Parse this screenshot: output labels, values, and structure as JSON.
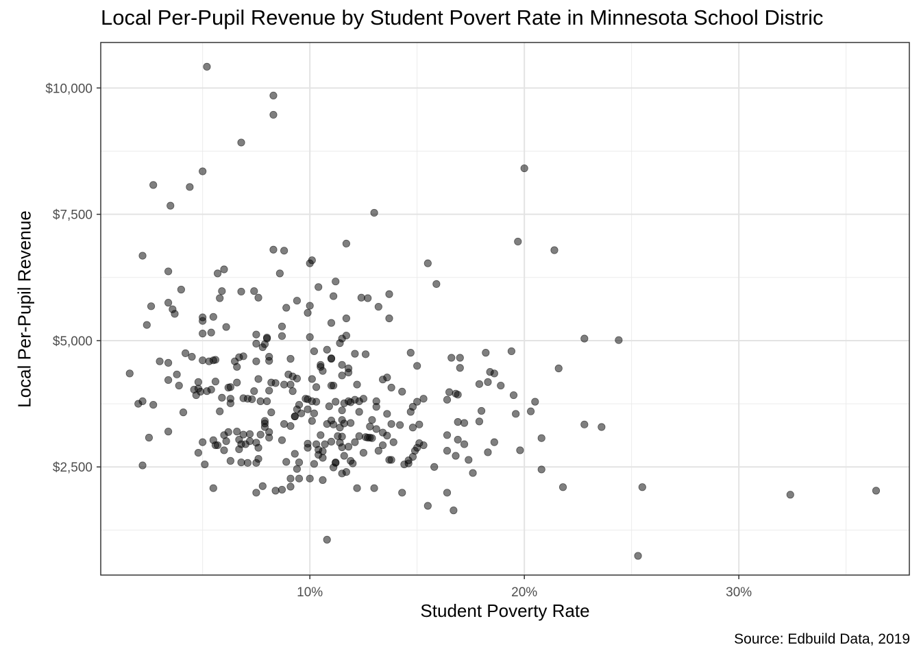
{
  "chart_data": {
    "type": "scatter",
    "title": "Local Per-Pupil Revenue by Student Povert Rate in Minnesota School Distric",
    "xlabel": "Student Poverty Rate",
    "ylabel": "Local Per-Pupil Revenue",
    "caption": "Source: Edbuild Data, 2019",
    "xlim": [
      0.0025,
      0.3795
    ],
    "ylim": [
      360,
      10900
    ],
    "x_ticks": [
      {
        "value": 0.1,
        "label": "10%"
      },
      {
        "value": 0.2,
        "label": "20%"
      },
      {
        "value": 0.3,
        "label": "30%"
      }
    ],
    "y_ticks": [
      {
        "value": 2500,
        "label": "$2,500"
      },
      {
        "value": 5000,
        "label": "$5,000"
      },
      {
        "value": 7500,
        "label": "$7,500"
      },
      {
        "value": 10000,
        "label": "$10,000"
      }
    ],
    "x_minor": [
      0.05,
      0.15,
      0.25,
      0.35
    ],
    "y_minor": [
      1250,
      3750,
      6250,
      8750
    ],
    "grid": true,
    "point_color": "#000000",
    "point_opacity": 0.5,
    "points": [
      [
        0.052,
        10420
      ],
      [
        0.083,
        9850
      ],
      [
        0.083,
        9470
      ],
      [
        0.068,
        8920
      ],
      [
        0.2,
        8410
      ],
      [
        0.05,
        8350
      ],
      [
        0.027,
        8080
      ],
      [
        0.044,
        8040
      ],
      [
        0.035,
        7670
      ],
      [
        0.13,
        7530
      ],
      [
        0.197,
        6960
      ],
      [
        0.117,
        6920
      ],
      [
        0.214,
        6790
      ],
      [
        0.083,
        6800
      ],
      [
        0.088,
        6780
      ],
      [
        0.022,
        6680
      ],
      [
        0.101,
        6590
      ],
      [
        0.1,
        6530
      ],
      [
        0.155,
        6530
      ],
      [
        0.06,
        6410
      ],
      [
        0.034,
        6370
      ],
      [
        0.086,
        6330
      ],
      [
        0.057,
        6330
      ],
      [
        0.112,
        6170
      ],
      [
        0.159,
        6120
      ],
      [
        0.104,
        6060
      ],
      [
        0.04,
        6010
      ],
      [
        0.059,
        5980
      ],
      [
        0.068,
        5970
      ],
      [
        0.074,
        5980
      ],
      [
        0.137,
        5920
      ],
      [
        0.111,
        5880
      ],
      [
        0.124,
        5850
      ],
      [
        0.127,
        5840
      ],
      [
        0.058,
        5840
      ],
      [
        0.076,
        5850
      ],
      [
        0.094,
        5790
      ],
      [
        0.034,
        5750
      ],
      [
        0.026,
        5680
      ],
      [
        0.1,
        5690
      ],
      [
        0.036,
        5620
      ],
      [
        0.089,
        5650
      ],
      [
        0.132,
        5670
      ],
      [
        0.037,
        5530
      ],
      [
        0.099,
        5550
      ],
      [
        0.05,
        5460
      ],
      [
        0.055,
        5470
      ],
      [
        0.117,
        5440
      ],
      [
        0.137,
        5440
      ],
      [
        0.05,
        5390
      ],
      [
        0.11,
        5350
      ],
      [
        0.024,
        5310
      ],
      [
        0.061,
        5270
      ],
      [
        0.087,
        5280
      ],
      [
        0.054,
        5160
      ],
      [
        0.05,
        5140
      ],
      [
        0.075,
        5120
      ],
      [
        0.08,
        5060
      ],
      [
        0.08,
        5040
      ],
      [
        0.1,
        5070
      ],
      [
        0.087,
        5090
      ],
      [
        0.117,
        5100
      ],
      [
        0.115,
        5040
      ],
      [
        0.228,
        5040
      ],
      [
        0.244,
        5010
      ],
      [
        0.075,
        4940
      ],
      [
        0.079,
        4930
      ],
      [
        0.114,
        4950
      ],
      [
        0.078,
        4870
      ],
      [
        0.108,
        4820
      ],
      [
        0.102,
        4790
      ],
      [
        0.121,
        4740
      ],
      [
        0.126,
        4730
      ],
      [
        0.147,
        4760
      ],
      [
        0.182,
        4760
      ],
      [
        0.194,
        4790
      ],
      [
        0.042,
        4750
      ],
      [
        0.045,
        4680
      ],
      [
        0.069,
        4690
      ],
      [
        0.067,
        4670
      ],
      [
        0.081,
        4680
      ],
      [
        0.11,
        4640
      ],
      [
        0.11,
        4650
      ],
      [
        0.166,
        4660
      ],
      [
        0.17,
        4660
      ],
      [
        0.05,
        4610
      ],
      [
        0.055,
        4610
      ],
      [
        0.056,
        4620
      ],
      [
        0.053,
        4590
      ],
      [
        0.065,
        4590
      ],
      [
        0.075,
        4590
      ],
      [
        0.091,
        4640
      ],
      [
        0.081,
        4600
      ],
      [
        0.03,
        4590
      ],
      [
        0.034,
        4560
      ],
      [
        0.066,
        4480
      ],
      [
        0.115,
        4520
      ],
      [
        0.105,
        4520
      ],
      [
        0.105,
        4480
      ],
      [
        0.15,
        4500
      ],
      [
        0.216,
        4450
      ],
      [
        0.17,
        4460
      ],
      [
        0.118,
        4450
      ],
      [
        0.118,
        4370
      ],
      [
        0.106,
        4400
      ],
      [
        0.016,
        4350
      ],
      [
        0.038,
        4330
      ],
      [
        0.115,
        4310
      ],
      [
        0.09,
        4330
      ],
      [
        0.092,
        4290
      ],
      [
        0.094,
        4250
      ],
      [
        0.101,
        4240
      ],
      [
        0.134,
        4230
      ],
      [
        0.136,
        4270
      ],
      [
        0.034,
        4220
      ],
      [
        0.048,
        4180
      ],
      [
        0.056,
        4190
      ],
      [
        0.066,
        4170
      ],
      [
        0.076,
        4240
      ],
      [
        0.082,
        4170
      ],
      [
        0.084,
        4160
      ],
      [
        0.088,
        4130
      ],
      [
        0.091,
        4130
      ],
      [
        0.11,
        4110
      ],
      [
        0.111,
        4110
      ],
      [
        0.122,
        4130
      ],
      [
        0.103,
        4080
      ],
      [
        0.039,
        4110
      ],
      [
        0.048,
        4050
      ],
      [
        0.054,
        4030
      ],
      [
        0.062,
        4070
      ],
      [
        0.063,
        4080
      ],
      [
        0.074,
        4000
      ],
      [
        0.081,
        4010
      ],
      [
        0.092,
        4000
      ],
      [
        0.046,
        4030
      ],
      [
        0.049,
        3990
      ],
      [
        0.052,
        4000
      ],
      [
        0.138,
        4070
      ],
      [
        0.143,
        3990
      ],
      [
        0.165,
        3980
      ],
      [
        0.179,
        4140
      ],
      [
        0.183,
        4180
      ],
      [
        0.184,
        4380
      ],
      [
        0.186,
        4350
      ],
      [
        0.189,
        4110
      ],
      [
        0.047,
        3920
      ],
      [
        0.059,
        3870
      ],
      [
        0.063,
        3850
      ],
      [
        0.069,
        3860
      ],
      [
        0.071,
        3850
      ],
      [
        0.073,
        3840
      ],
      [
        0.077,
        3800
      ],
      [
        0.08,
        3800
      ],
      [
        0.098,
        3850
      ],
      [
        0.099,
        3840
      ],
      [
        0.101,
        3800
      ],
      [
        0.103,
        3790
      ],
      [
        0.112,
        3790
      ],
      [
        0.118,
        3800
      ],
      [
        0.119,
        3780
      ],
      [
        0.121,
        3830
      ],
      [
        0.123,
        3800
      ],
      [
        0.125,
        3850
      ],
      [
        0.131,
        3800
      ],
      [
        0.15,
        3790
      ],
      [
        0.153,
        3850
      ],
      [
        0.164,
        3830
      ],
      [
        0.168,
        3950
      ],
      [
        0.169,
        3930
      ],
      [
        0.195,
        3920
      ],
      [
        0.205,
        3790
      ],
      [
        0.022,
        3800
      ],
      [
        0.02,
        3750
      ],
      [
        0.027,
        3730
      ],
      [
        0.063,
        3760
      ],
      [
        0.095,
        3730
      ],
      [
        0.109,
        3700
      ],
      [
        0.116,
        3760
      ],
      [
        0.131,
        3690
      ],
      [
        0.148,
        3690
      ],
      [
        0.094,
        3640
      ],
      [
        0.099,
        3640
      ],
      [
        0.102,
        3560
      ],
      [
        0.115,
        3620
      ],
      [
        0.123,
        3590
      ],
      [
        0.136,
        3550
      ],
      [
        0.147,
        3590
      ],
      [
        0.203,
        3600
      ],
      [
        0.18,
        3610
      ],
      [
        0.196,
        3550
      ],
      [
        0.041,
        3580
      ],
      [
        0.058,
        3600
      ],
      [
        0.082,
        3580
      ],
      [
        0.093,
        3500
      ],
      [
        0.093,
        3500
      ],
      [
        0.096,
        3560
      ],
      [
        0.11,
        3420
      ],
      [
        0.115,
        3430
      ],
      [
        0.116,
        3360
      ],
      [
        0.119,
        3370
      ],
      [
        0.129,
        3430
      ],
      [
        0.138,
        3350
      ],
      [
        0.142,
        3330
      ],
      [
        0.151,
        3340
      ],
      [
        0.169,
        3390
      ],
      [
        0.172,
        3370
      ],
      [
        0.179,
        3400
      ],
      [
        0.228,
        3340
      ],
      [
        0.236,
        3290
      ],
      [
        0.079,
        3410
      ],
      [
        0.079,
        3360
      ],
      [
        0.088,
        3350
      ],
      [
        0.091,
        3310
      ],
      [
        0.101,
        3410
      ],
      [
        0.108,
        3350
      ],
      [
        0.111,
        3340
      ],
      [
        0.114,
        3280
      ],
      [
        0.128,
        3300
      ],
      [
        0.148,
        3280
      ],
      [
        0.131,
        3250
      ],
      [
        0.134,
        3180
      ],
      [
        0.079,
        3290
      ],
      [
        0.081,
        3190
      ],
      [
        0.034,
        3200
      ],
      [
        0.062,
        3190
      ],
      [
        0.066,
        3200
      ],
      [
        0.069,
        3140
      ],
      [
        0.072,
        3150
      ],
      [
        0.077,
        3140
      ],
      [
        0.06,
        3130
      ],
      [
        0.105,
        3130
      ],
      [
        0.113,
        3110
      ],
      [
        0.115,
        3100
      ],
      [
        0.123,
        3110
      ],
      [
        0.126,
        3090
      ],
      [
        0.127,
        3080
      ],
      [
        0.128,
        3080
      ],
      [
        0.129,
        3070
      ],
      [
        0.136,
        3120
      ],
      [
        0.164,
        3130
      ],
      [
        0.208,
        3070
      ],
      [
        0.025,
        3080
      ],
      [
        0.055,
        3030
      ],
      [
        0.061,
        3010
      ],
      [
        0.067,
        3040
      ],
      [
        0.072,
        3010
      ],
      [
        0.081,
        3080
      ],
      [
        0.087,
        3030
      ],
      [
        0.099,
        2960
      ],
      [
        0.103,
        2950
      ],
      [
        0.107,
        2950
      ],
      [
        0.11,
        3000
      ],
      [
        0.114,
        2980
      ],
      [
        0.121,
        2990
      ],
      [
        0.134,
        2930
      ],
      [
        0.139,
        2990
      ],
      [
        0.151,
        2970
      ],
      [
        0.153,
        2930
      ],
      [
        0.169,
        3040
      ],
      [
        0.172,
        2950
      ],
      [
        0.186,
        2990
      ],
      [
        0.05,
        2990
      ],
      [
        0.056,
        2930
      ],
      [
        0.057,
        2930
      ],
      [
        0.068,
        2950
      ],
      [
        0.067,
        2850
      ],
      [
        0.07,
        2950
      ],
      [
        0.075,
        2980
      ],
      [
        0.076,
        2880
      ],
      [
        0.099,
        2880
      ],
      [
        0.104,
        2840
      ],
      [
        0.106,
        2810
      ],
      [
        0.115,
        2890
      ],
      [
        0.118,
        2900
      ],
      [
        0.125,
        2780
      ],
      [
        0.132,
        2820
      ],
      [
        0.149,
        2820
      ],
      [
        0.15,
        2880
      ],
      [
        0.164,
        2820
      ],
      [
        0.183,
        2790
      ],
      [
        0.198,
        2830
      ],
      [
        0.048,
        2780
      ],
      [
        0.06,
        2830
      ],
      [
        0.093,
        2760
      ],
      [
        0.104,
        2740
      ],
      [
        0.106,
        2680
      ],
      [
        0.116,
        2720
      ],
      [
        0.137,
        2640
      ],
      [
        0.146,
        2630
      ],
      [
        0.148,
        2700
      ],
      [
        0.168,
        2720
      ],
      [
        0.174,
        2640
      ],
      [
        0.063,
        2620
      ],
      [
        0.068,
        2590
      ],
      [
        0.071,
        2580
      ],
      [
        0.075,
        2580
      ],
      [
        0.076,
        2660
      ],
      [
        0.089,
        2600
      ],
      [
        0.095,
        2590
      ],
      [
        0.102,
        2560
      ],
      [
        0.112,
        2580
      ],
      [
        0.112,
        2590
      ],
      [
        0.119,
        2620
      ],
      [
        0.12,
        2570
      ],
      [
        0.138,
        2640
      ],
      [
        0.144,
        2550
      ],
      [
        0.146,
        2570
      ],
      [
        0.158,
        2500
      ],
      [
        0.208,
        2450
      ],
      [
        0.022,
        2530
      ],
      [
        0.051,
        2550
      ],
      [
        0.094,
        2460
      ],
      [
        0.111,
        2490
      ],
      [
        0.117,
        2400
      ],
      [
        0.115,
        2370
      ],
      [
        0.176,
        2380
      ],
      [
        0.095,
        2270
      ],
      [
        0.091,
        2270
      ],
      [
        0.1,
        2270
      ],
      [
        0.106,
        2240
      ],
      [
        0.078,
        2120
      ],
      [
        0.091,
        2110
      ],
      [
        0.084,
        2030
      ],
      [
        0.075,
        1990
      ],
      [
        0.087,
        2050
      ],
      [
        0.055,
        2080
      ],
      [
        0.122,
        2080
      ],
      [
        0.13,
        2080
      ],
      [
        0.143,
        1990
      ],
      [
        0.164,
        1990
      ],
      [
        0.218,
        2100
      ],
      [
        0.255,
        2100
      ],
      [
        0.324,
        1950
      ],
      [
        0.364,
        2030
      ],
      [
        0.155,
        1730
      ],
      [
        0.167,
        1640
      ],
      [
        0.108,
        1060
      ],
      [
        0.253,
        740
      ]
    ]
  }
}
